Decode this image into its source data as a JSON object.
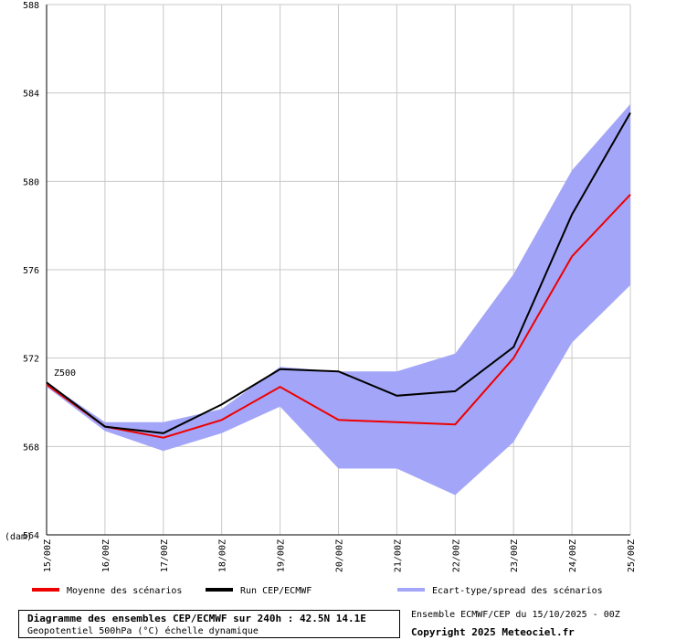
{
  "chart_data": {
    "type": "line",
    "ylabel": "(dam)",
    "annotation": "Z500",
    "ylim": [
      564,
      588
    ],
    "yticks": [
      "564",
      "568",
      "572",
      "576",
      "580",
      "584",
      "588"
    ],
    "categories": [
      "15/00Z",
      "16/00Z",
      "17/00Z",
      "18/00Z",
      "19/00Z",
      "20/00Z",
      "21/00Z",
      "22/00Z",
      "23/00Z",
      "24/00Z",
      "25/00Z"
    ],
    "series": [
      {
        "name": "Moyenne des scénarios",
        "color": "#ee0000",
        "values": [
          570.8,
          568.9,
          568.4,
          569.2,
          570.7,
          569.2,
          569.1,
          569.0,
          572.0,
          576.6,
          579.4
        ]
      },
      {
        "name": "Run CEP/ECMWF",
        "color": "#000000",
        "values": [
          570.9,
          568.9,
          568.6,
          569.9,
          571.5,
          571.4,
          570.3,
          570.5,
          572.5,
          578.5,
          583.1
        ]
      }
    ],
    "spread": {
      "name": "Ecart-type/spread des scénarios",
      "color": "#a3a6f8",
      "upper": [
        570.9,
        569.1,
        569.1,
        569.7,
        571.6,
        571.4,
        571.4,
        572.2,
        575.8,
        580.5,
        583.5
      ],
      "lower": [
        570.7,
        568.7,
        567.8,
        568.6,
        569.8,
        567.0,
        567.0,
        565.8,
        568.2,
        572.7,
        575.3
      ]
    }
  },
  "footer": {
    "title": "Diagramme des ensembles CEP/ECMWF sur 240h : 42.5N 14.1E",
    "subtitle": "Geopotentiel 500hPa (°C) échelle dynamique",
    "run_info": "Ensemble ECMWF/CEP du 15/10/2025 - 00Z",
    "copyright": "Copyright 2025 Meteociel.fr"
  }
}
